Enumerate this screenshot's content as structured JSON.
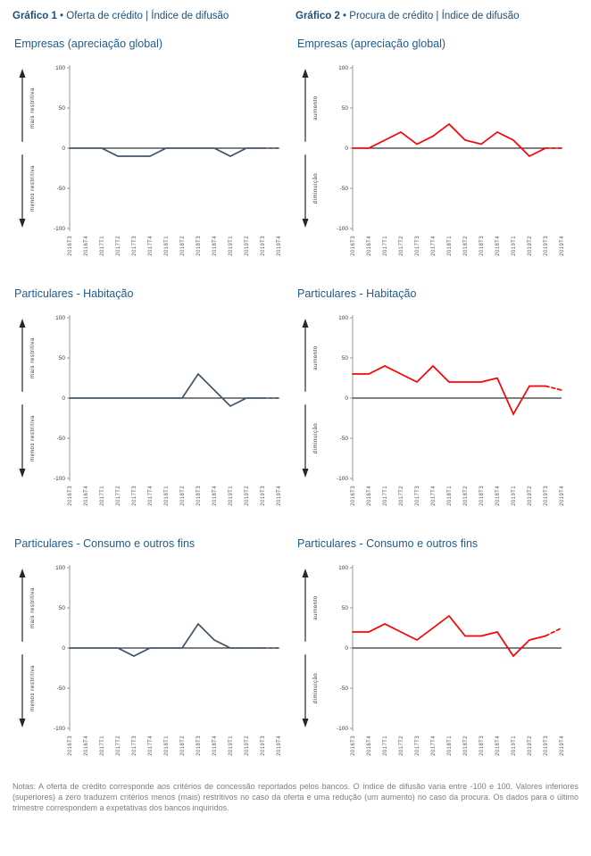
{
  "headers": {
    "g1_bold": "Gráfico 1",
    "g1_rest": " • Oferta de crédito | Índice de difusão",
    "g2_bold": "Gráfico 2",
    "g2_rest": " • Procura de crédito | Índice de difusão"
  },
  "colors": {
    "header_blue": "#1F4E79",
    "subtitle_blue": "#215C8C",
    "notes_gray": "#7F7F7F",
    "supply_line": "#44546A",
    "demand_line": "#FF0000",
    "zero_line": "#000000",
    "tick_text": "#404040",
    "x_tick_text": "#595959"
  },
  "notes": "Notas: A oferta de crédito corresponde aos critérios de concessão reportados pelos bancos. O índice de difusão varia entre -100 e 100. Valores inferiores (superiores) a zero traduzem critérios menos (mais) restritivos no caso da oferta e uma redução (um aumento) no caso da procura. Os dados para o último trimestre correspondem a expetativas dos bancos inquiridos.",
  "chart_data": [
    {
      "type": "line",
      "group": "Oferta de crédito",
      "title": "Empresas (apreciação global)",
      "color": "#44546A",
      "ylabel_top": "mais restritiva",
      "ylabel_bottom": "menos restritiva",
      "ylim": [
        -100,
        100
      ],
      "yticks": [
        100,
        50,
        0,
        -50,
        -100
      ],
      "categories": [
        "2016T3",
        "2016T4",
        "2017T1",
        "2017T2",
        "2017T3",
        "2017T4",
        "2018T1",
        "2018T2",
        "2018T3",
        "2018T4",
        "2019T1",
        "2019T2",
        "2019T3",
        "2019T4"
      ],
      "values": [
        0,
        0,
        0,
        -10,
        -10,
        -10,
        0,
        0,
        0,
        0,
        -10,
        0,
        0,
        0
      ],
      "last_segment_dashed": true
    },
    {
      "type": "line",
      "group": "Procura de crédito",
      "title": "Empresas (apreciação global)",
      "color": "#FF0000",
      "ylabel_top": "aumento",
      "ylabel_bottom": "diminuição",
      "ylim": [
        -100,
        100
      ],
      "yticks": [
        100,
        50,
        0,
        -50,
        -100
      ],
      "categories": [
        "2016T3",
        "2016T4",
        "2017T1",
        "2017T2",
        "2017T3",
        "2017T4",
        "2018T1",
        "2018T2",
        "2018T3",
        "2018T4",
        "2019T1",
        "2019T2",
        "2019T3",
        "2019T4"
      ],
      "values": [
        0,
        0,
        10,
        20,
        5,
        15,
        30,
        10,
        5,
        20,
        10,
        -10,
        0,
        0
      ],
      "last_segment_dashed": true
    },
    {
      "type": "line",
      "group": "Oferta de crédito",
      "title": "Particulares - Habitação",
      "color": "#44546A",
      "ylabel_top": "mais restritiva",
      "ylabel_bottom": "menos restritiva",
      "ylim": [
        -100,
        100
      ],
      "yticks": [
        100,
        50,
        0,
        -50,
        -100
      ],
      "categories": [
        "2016T3",
        "2016T4",
        "2017T1",
        "2017T2",
        "2017T3",
        "2017T4",
        "2018T1",
        "2018T2",
        "2018T3",
        "2018T4",
        "2019T1",
        "2019T2",
        "2019T3",
        "2019T4"
      ],
      "values": [
        0,
        0,
        0,
        0,
        0,
        0,
        0,
        0,
        30,
        10,
        -10,
        0,
        0,
        0
      ],
      "last_segment_dashed": true
    },
    {
      "type": "line",
      "group": "Procura de crédito",
      "title": "Particulares - Habitação",
      "color": "#FF0000",
      "ylabel_top": "aumento",
      "ylabel_bottom": "diminuição",
      "ylim": [
        -100,
        100
      ],
      "yticks": [
        100,
        50,
        0,
        -50,
        -100
      ],
      "categories": [
        "2016T3",
        "2016T4",
        "2017T1",
        "2017T2",
        "2017T3",
        "2017T4",
        "2018T1",
        "2018T2",
        "2018T3",
        "2018T4",
        "2019T1",
        "2019T2",
        "2019T3",
        "2019T4"
      ],
      "values": [
        30,
        30,
        40,
        30,
        20,
        40,
        20,
        20,
        20,
        25,
        -20,
        15,
        15,
        10
      ],
      "last_segment_dashed": true
    },
    {
      "type": "line",
      "group": "Oferta de crédito",
      "title": "Particulares - Consumo e outros fins",
      "color": "#44546A",
      "ylabel_top": "mais restritiva",
      "ylabel_bottom": "menos restritiva",
      "ylim": [
        -100,
        100
      ],
      "yticks": [
        100,
        50,
        0,
        -50,
        -100
      ],
      "categories": [
        "2016T3",
        "2016T4",
        "2017T1",
        "2017T2",
        "2017T3",
        "2017T4",
        "2018T1",
        "2018T2",
        "2018T3",
        "2018T4",
        "2019T1",
        "2019T2",
        "2019T3",
        "2019T4"
      ],
      "values": [
        0,
        0,
        0,
        0,
        -10,
        0,
        0,
        0,
        30,
        10,
        0,
        0,
        0,
        0
      ],
      "last_segment_dashed": true
    },
    {
      "type": "line",
      "group": "Procura de crédito",
      "title": "Particulares - Consumo e outros fins",
      "color": "#FF0000",
      "ylabel_top": "aumento",
      "ylabel_bottom": "diminuição",
      "ylim": [
        -100,
        100
      ],
      "yticks": [
        100,
        50,
        0,
        -50,
        -100
      ],
      "categories": [
        "2016T3",
        "2016T4",
        "2017T1",
        "2017T2",
        "2017T3",
        "2017T4",
        "2018T1",
        "2018T2",
        "2018T3",
        "2018T4",
        "2019T1",
        "2019T2",
        "2019T3",
        "2019T4"
      ],
      "values": [
        20,
        20,
        30,
        20,
        10,
        25,
        40,
        15,
        15,
        20,
        -10,
        10,
        15,
        25
      ],
      "last_segment_dashed": true
    }
  ]
}
